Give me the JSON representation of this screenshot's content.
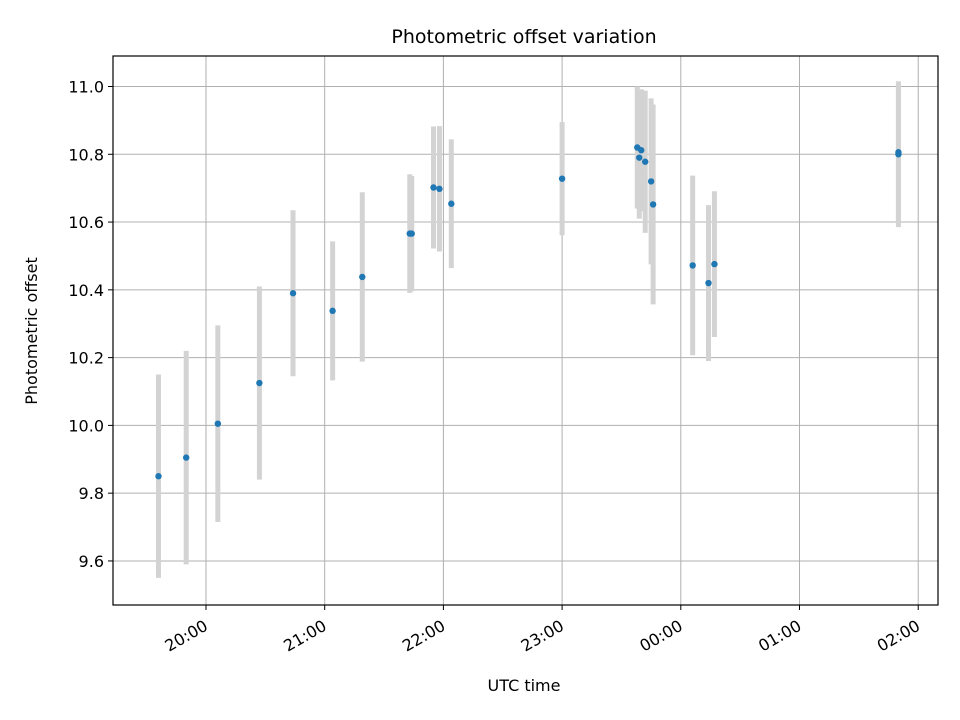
{
  "chart_data": {
    "type": "scatter",
    "title": "Photometric offset variation",
    "xlabel": "UTC time",
    "ylabel": "Photometric offset",
    "x_tick_labels": [
      "20:00",
      "21:00",
      "22:00",
      "23:00",
      "00:00",
      "01:00",
      "02:00"
    ],
    "y_ticks": [
      9.6,
      9.8,
      10.0,
      10.2,
      10.4,
      10.6,
      10.8,
      11.0
    ],
    "y_tick_labels": [
      "9.6",
      "9.8",
      "10.0",
      "10.2",
      "10.4",
      "10.6",
      "10.8",
      "11.0"
    ],
    "xlim": [
      "19:13",
      "02:10"
    ],
    "ylim": [
      9.47,
      11.09
    ],
    "grid": true,
    "error_bar_color": "#d3d3d3",
    "point_color": "#1f77b4",
    "points": [
      {
        "x": "19:36",
        "y": 9.85,
        "err": 0.3
      },
      {
        "x": "19:50",
        "y": 9.905,
        "err": 0.315
      },
      {
        "x": "20:06",
        "y": 10.005,
        "err": 0.29
      },
      {
        "x": "20:27",
        "y": 10.125,
        "err": 0.285
      },
      {
        "x": "20:44",
        "y": 10.39,
        "err": 0.245
      },
      {
        "x": "21:04",
        "y": 10.338,
        "err": 0.205
      },
      {
        "x": "21:19",
        "y": 10.438,
        "err": 0.25
      },
      {
        "x": "21:43",
        "y": 10.566,
        "err": 0.175
      },
      {
        "x": "21:44",
        "y": 10.566,
        "err": 0.17
      },
      {
        "x": "21:55",
        "y": 10.702,
        "err": 0.18
      },
      {
        "x": "21:58",
        "y": 10.698,
        "err": 0.185
      },
      {
        "x": "22:04",
        "y": 10.654,
        "err": 0.19
      },
      {
        "x": "23:00",
        "y": 10.728,
        "err": 0.167
      },
      {
        "x": "23:38",
        "y": 10.82,
        "err": 0.18
      },
      {
        "x": "23:39",
        "y": 10.79,
        "err": 0.18
      },
      {
        "x": "23:40",
        "y": 10.812,
        "err": 0.18
      },
      {
        "x": "23:42",
        "y": 10.778,
        "err": 0.21
      },
      {
        "x": "23:45",
        "y": 10.72,
        "err": 0.245
      },
      {
        "x": "23:46",
        "y": 10.652,
        "err": 0.295
      },
      {
        "x": "00:06",
        "y": 10.472,
        "err": 0.265
      },
      {
        "x": "00:14",
        "y": 10.42,
        "err": 0.23
      },
      {
        "x": "00:17",
        "y": 10.476,
        "err": 0.215
      },
      {
        "x": "01:50",
        "y": 10.8,
        "err": 0.215
      },
      {
        "x": "01:50",
        "y": 10.806,
        "err": 0.205
      }
    ]
  }
}
